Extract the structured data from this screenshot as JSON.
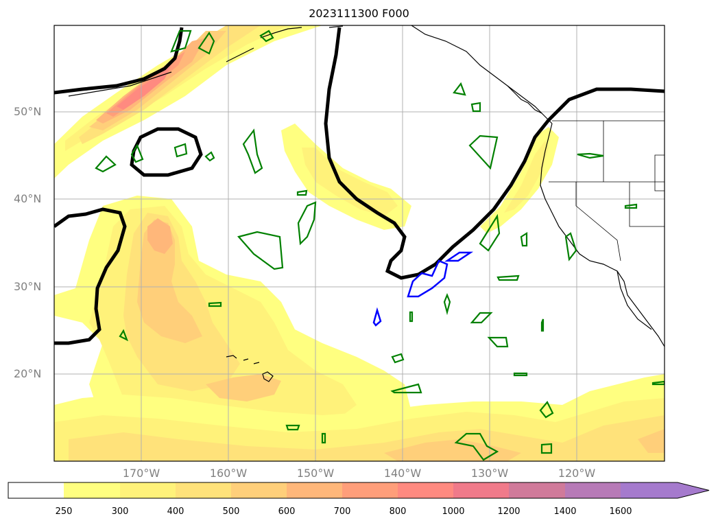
{
  "title": "2023111300 F000",
  "map": {
    "lat_labels": [
      "50°N",
      "40°N",
      "30°N",
      "20°N"
    ],
    "lon_labels": [
      "170°W",
      "160°W",
      "150°W",
      "140°W",
      "130°W",
      "120°W"
    ],
    "grid": true
  },
  "colorbar": {
    "ticks": [
      "250",
      "300",
      "400",
      "500",
      "600",
      "700",
      "800",
      "1000",
      "1200",
      "1400",
      "1600"
    ],
    "colors": [
      "#ffffff",
      "#ffff80",
      "#fff27a",
      "#ffe27a",
      "#ffcf7a",
      "#ffb77a",
      "#ff9e7a",
      "#ff8a80",
      "#f07a8a",
      "#d07a9a",
      "#b77ab7",
      "#a57acd"
    ],
    "extend": "max"
  },
  "contours": {
    "thick_black": "#000000",
    "green": "#008000",
    "blue": "#0000ff"
  },
  "colors": {
    "land_outline": "#000000",
    "grid": "#b0b0b0",
    "label_gray": "#808080"
  }
}
